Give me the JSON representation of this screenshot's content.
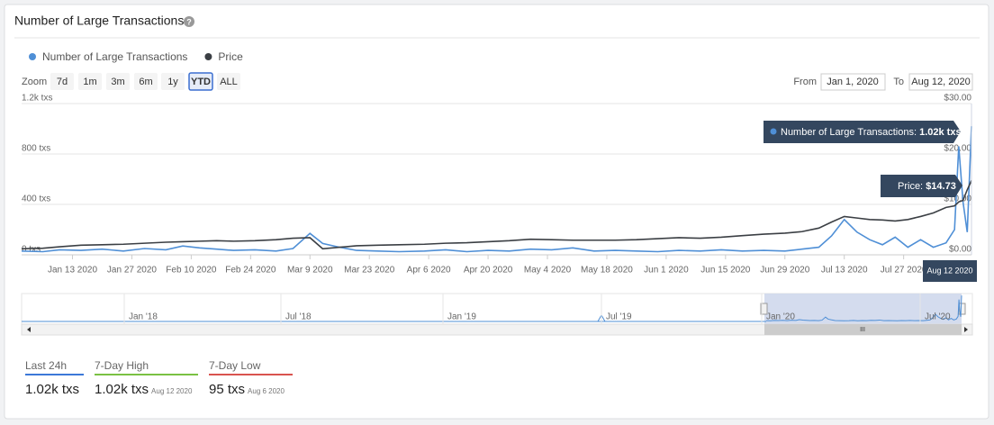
{
  "header": {
    "title": "Number of Large Transactions",
    "help": "?"
  },
  "controls": {
    "zoom_label": "Zoom",
    "zoom": [
      "7d",
      "1m",
      "3m",
      "6m",
      "1y",
      "YTD",
      "ALL"
    ],
    "selected": "YTD",
    "from_label": "From",
    "from": "Jan 1, 2020",
    "to_label": "To",
    "to": "Aug 12, 2020"
  },
  "chart_data": {
    "type": "line",
    "x": [
      "2020-01-01",
      "2020-01-06",
      "2020-01-10",
      "2020-01-15",
      "2020-01-20",
      "2020-01-25",
      "2020-01-30",
      "2020-02-04",
      "2020-02-08",
      "2020-02-12",
      "2020-02-16",
      "2020-02-20",
      "2020-02-25",
      "2020-03-01",
      "2020-03-05",
      "2020-03-09",
      "2020-03-12",
      "2020-03-16",
      "2020-03-20",
      "2020-03-25",
      "2020-03-30",
      "2020-04-05",
      "2020-04-10",
      "2020-04-15",
      "2020-04-20",
      "2020-04-25",
      "2020-04-30",
      "2020-05-05",
      "2020-05-10",
      "2020-05-15",
      "2020-05-20",
      "2020-05-25",
      "2020-05-30",
      "2020-06-04",
      "2020-06-09",
      "2020-06-14",
      "2020-06-19",
      "2020-06-24",
      "2020-06-29",
      "2020-07-03",
      "2020-07-07",
      "2020-07-10",
      "2020-07-13",
      "2020-07-16",
      "2020-07-19",
      "2020-07-22",
      "2020-07-25",
      "2020-07-28",
      "2020-07-31",
      "2020-08-03",
      "2020-08-06",
      "2020-08-08",
      "2020-08-09",
      "2020-08-10",
      "2020-08-11",
      "2020-08-12"
    ],
    "series": [
      {
        "name": "Number of Large Transactions",
        "color": "#4f8fd6",
        "axis": "y",
        "values": [
          30,
          25,
          40,
          35,
          45,
          30,
          50,
          40,
          70,
          55,
          45,
          35,
          40,
          30,
          50,
          170,
          90,
          60,
          35,
          30,
          25,
          30,
          40,
          25,
          35,
          30,
          45,
          40,
          55,
          30,
          35,
          30,
          25,
          35,
          30,
          40,
          30,
          35,
          30,
          45,
          60,
          150,
          280,
          180,
          120,
          80,
          140,
          60,
          120,
          60,
          95,
          200,
          860,
          420,
          180,
          1020
        ]
      },
      {
        "name": "Price",
        "color": "#3b3f44",
        "axis": "y2",
        "values": [
          1.2,
          1.3,
          1.6,
          1.9,
          2.0,
          2.1,
          2.3,
          2.5,
          2.6,
          2.7,
          2.8,
          2.7,
          2.8,
          3.0,
          3.3,
          3.4,
          1.2,
          1.5,
          1.8,
          1.9,
          2.0,
          2.1,
          2.3,
          2.4,
          2.6,
          2.8,
          3.1,
          3.0,
          2.9,
          2.9,
          2.9,
          3.0,
          3.2,
          3.4,
          3.3,
          3.5,
          3.8,
          4.1,
          4.3,
          4.6,
          5.3,
          6.5,
          7.6,
          7.3,
          7.0,
          6.9,
          6.7,
          7.0,
          7.6,
          8.3,
          9.4,
          9.7,
          10.5,
          10.8,
          12.9,
          14.73
        ]
      }
    ],
    "xlim": [
      "2020-01-01",
      "2020-08-12"
    ],
    "xticks": [
      {
        "value": "2020-01-13",
        "label": "Jan 13 2020"
      },
      {
        "value": "2020-01-27",
        "label": "Jan 27 2020"
      },
      {
        "value": "2020-02-10",
        "label": "Feb 10 2020"
      },
      {
        "value": "2020-02-24",
        "label": "Feb 24 2020"
      },
      {
        "value": "2020-03-09",
        "label": "Mar 9 2020"
      },
      {
        "value": "2020-03-23",
        "label": "Mar 23 2020"
      },
      {
        "value": "2020-04-06",
        "label": "Apr 6 2020"
      },
      {
        "value": "2020-04-20",
        "label": "Apr 20 2020"
      },
      {
        "value": "2020-05-04",
        "label": "May 4 2020"
      },
      {
        "value": "2020-05-18",
        "label": "May 18 2020"
      },
      {
        "value": "2020-06-01",
        "label": "Jun 1 2020"
      },
      {
        "value": "2020-06-15",
        "label": "Jun 15 2020"
      },
      {
        "value": "2020-06-29",
        "label": "Jun 29 2020"
      },
      {
        "value": "2020-07-13",
        "label": "Jul 13 2020"
      },
      {
        "value": "2020-07-27",
        "label": "Jul 27 2020"
      }
    ],
    "ylim": [
      0,
      1200
    ],
    "yticks": [
      {
        "value": 0,
        "label": "0 txs"
      },
      {
        "value": 400,
        "label": "400 txs"
      },
      {
        "value": 800,
        "label": "800 txs"
      },
      {
        "value": 1200,
        "label": "1.2k txs"
      }
    ],
    "y2lim": [
      0,
      30
    ],
    "y2ticks": [
      {
        "value": 0,
        "label": "$0.00"
      },
      {
        "value": 10,
        "label": "$10.00"
      },
      {
        "value": 20,
        "label": "$20.00"
      },
      {
        "value": 30,
        "label": "$30.00"
      }
    ],
    "grid": true
  },
  "tooltip": {
    "tx_label": "Number of Large Transactions: ",
    "tx_value": "1.02k txs",
    "price_label": "Price: ",
    "price_value": "$14.73",
    "date": "Aug 12 2020"
  },
  "navigator": {
    "labels": [
      "Jan '18",
      "Jul '18",
      "Jan '19",
      "Jul '19",
      "Jan '20",
      "Jul '20"
    ],
    "handle": "III"
  },
  "stats": [
    {
      "label": "Last 24h",
      "value": "1.02k txs"
    },
    {
      "label": "7-Day High",
      "value": "1.02k txs",
      "date": "Aug 12 2020"
    },
    {
      "label": "7-Day Low",
      "value": "95 txs",
      "date": "Aug 6 2020"
    }
  ]
}
